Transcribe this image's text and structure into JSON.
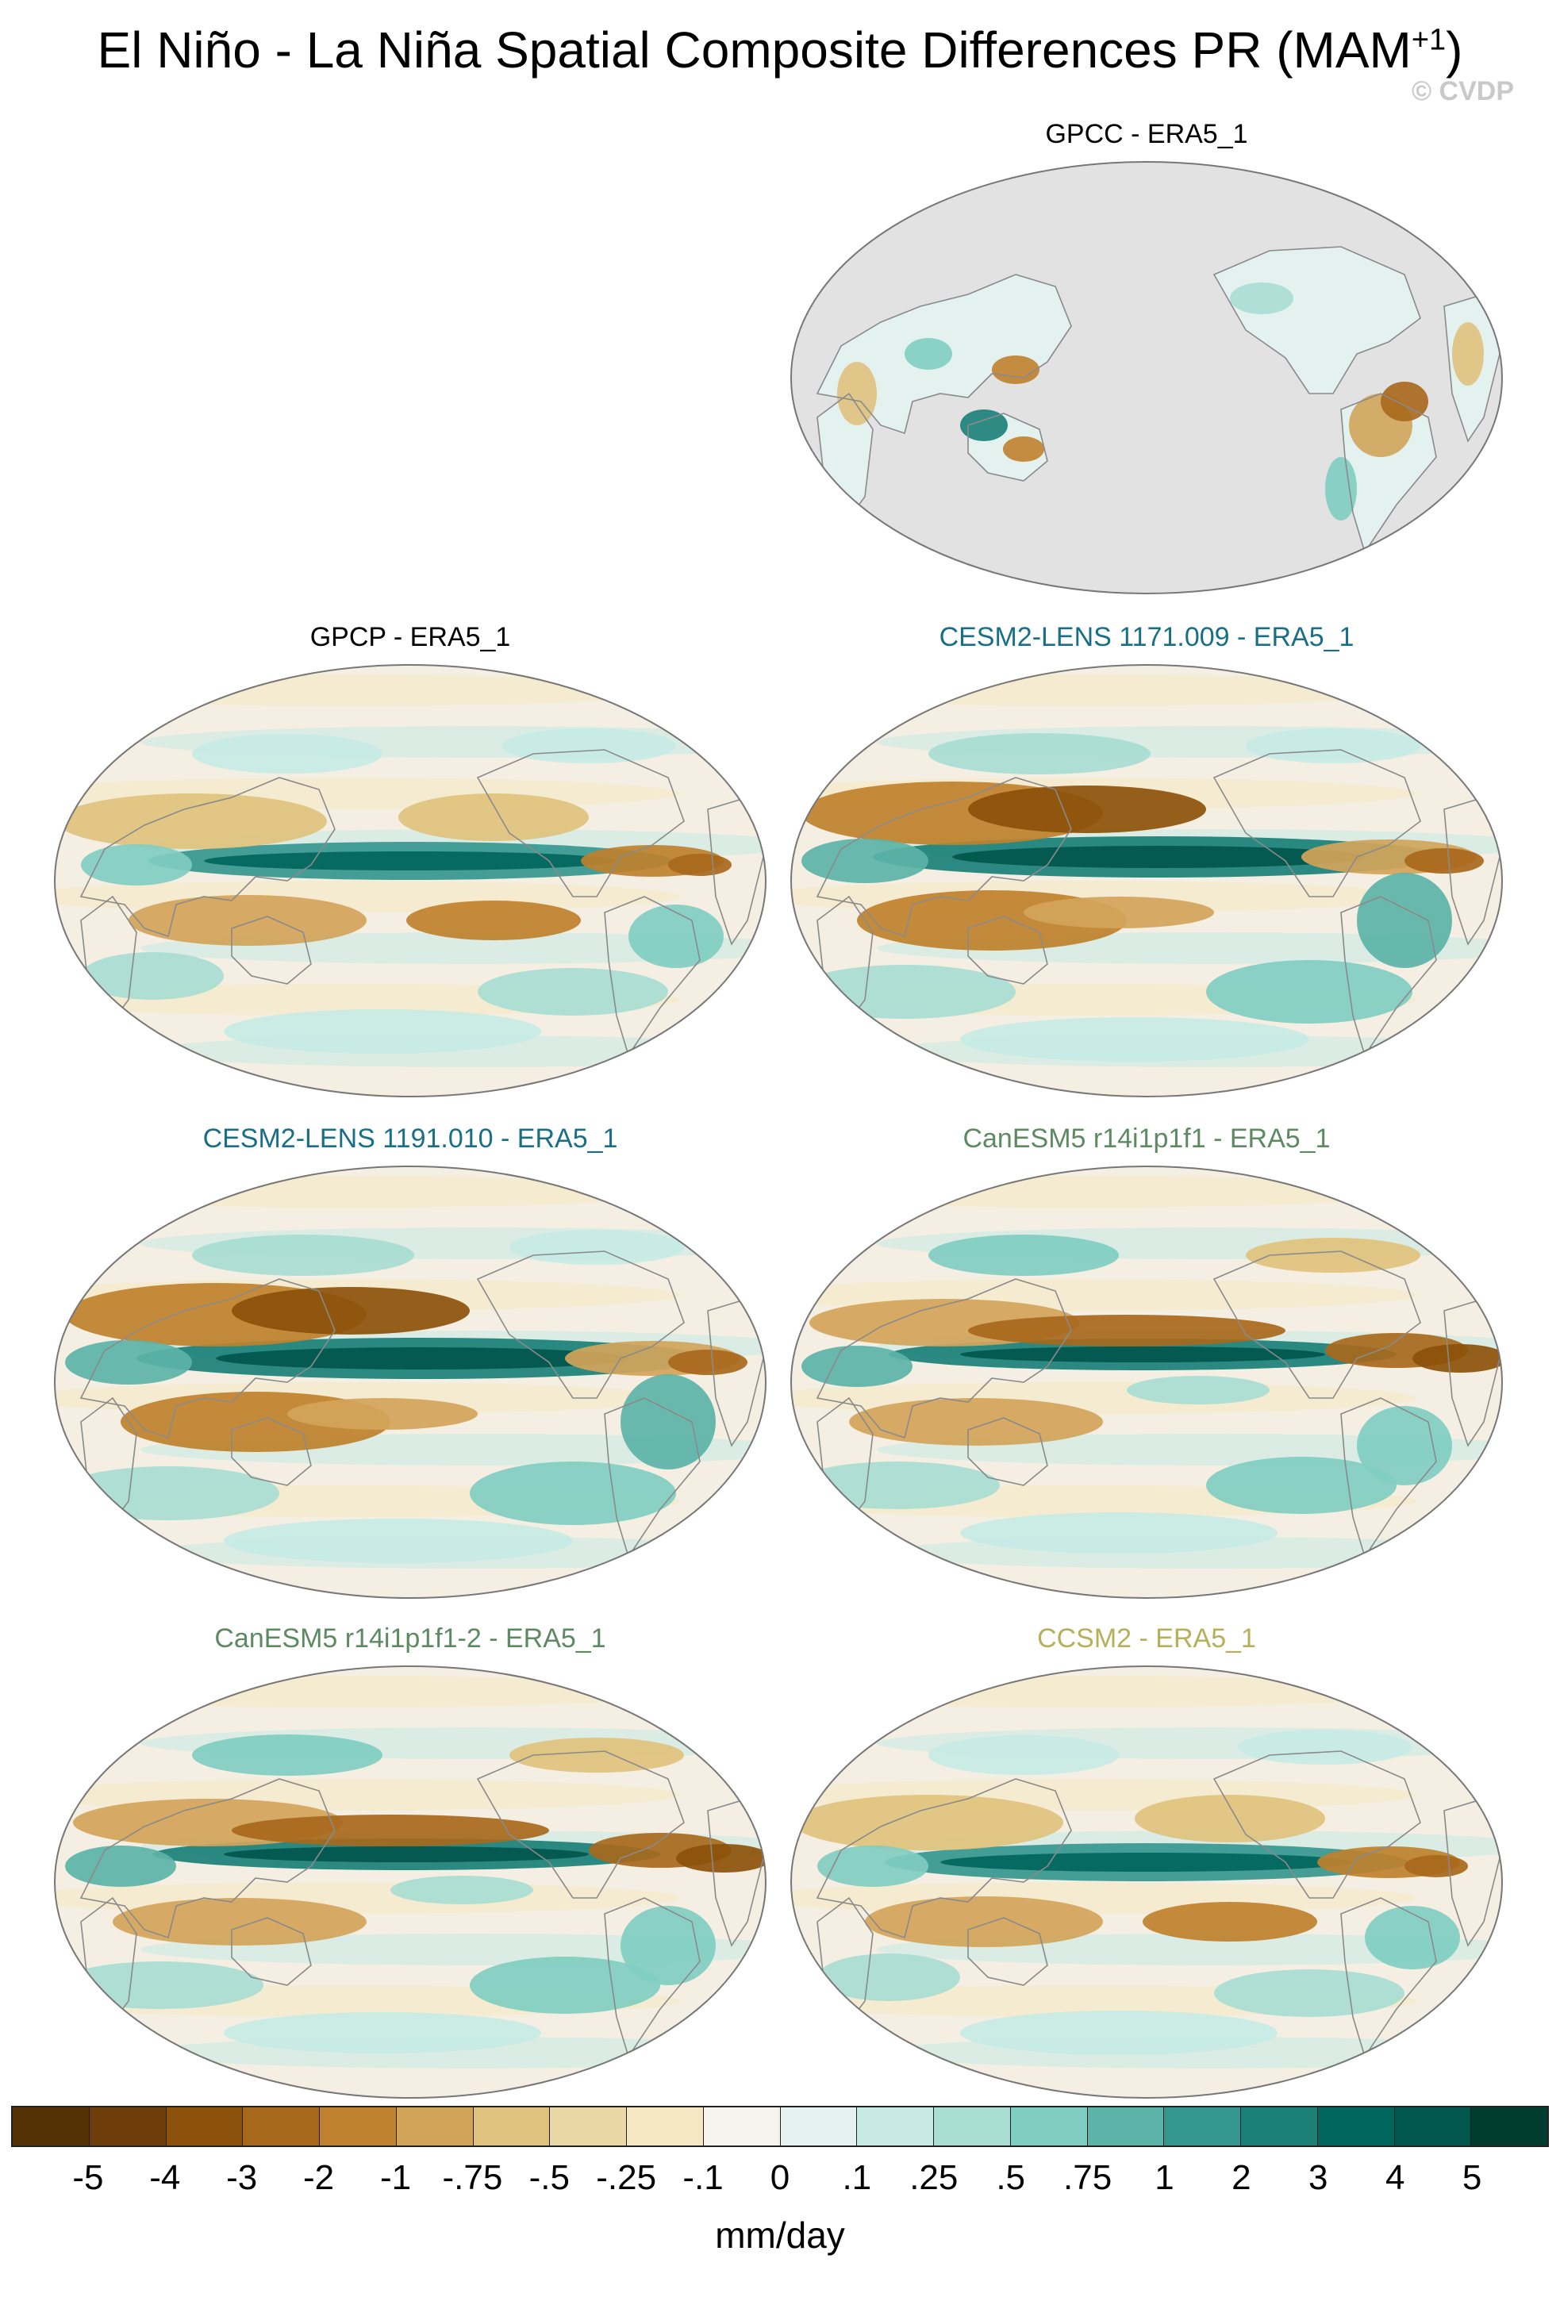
{
  "title": {
    "main": "El Niño - La Niña Spatial Composite Differences PR (MAM",
    "superscript": "+1",
    "close": ")"
  },
  "watermark": "© CVDP",
  "panels": [
    {
      "title": "GPCC - ERA5_1",
      "color": "#000000",
      "ocean_masked": true
    },
    {
      "title": "GPCP - ERA5_1",
      "color": "#000000",
      "ocean_masked": false
    },
    {
      "title": "CESM2-LENS 1171.009 - ERA5_1",
      "color": "#1a6e86",
      "ocean_masked": false
    },
    {
      "title": "CESM2-LENS 1191.010 - ERA5_1",
      "color": "#1a6e86",
      "ocean_masked": false
    },
    {
      "title": "CanESM5 r14i1p1f1 - ERA5_1",
      "color": "#5e8a62",
      "ocean_masked": false
    },
    {
      "title": "CanESM5 r14i1p1f1-2 - ERA5_1",
      "color": "#5e8a62",
      "ocean_masked": false
    },
    {
      "title": "CCSM2 - ERA5_1",
      "color": "#b6b05a",
      "ocean_masked": false
    }
  ],
  "colorbar": {
    "units": "mm/day",
    "labels": [
      "-5",
      "-4",
      "-3",
      "-2",
      "-1",
      "-.75",
      "-.5",
      "-.25",
      "-.1",
      "0",
      ".1",
      ".25",
      ".5",
      ".75",
      "1",
      "2",
      "3",
      "4",
      "5"
    ],
    "colors": [
      "#543005",
      "#6f3d0a",
      "#8c510a",
      "#a8681c",
      "#bf812d",
      "#d2a45a",
      "#dfc27d",
      "#ead7a6",
      "#f6e8c3",
      "#f5f3ec",
      "#e4f2ef",
      "#c7eae5",
      "#a8ddd3",
      "#80cdc1",
      "#5cb3a8",
      "#35978f",
      "#1a8078",
      "#01665e",
      "#01564d",
      "#003c30"
    ]
  }
}
